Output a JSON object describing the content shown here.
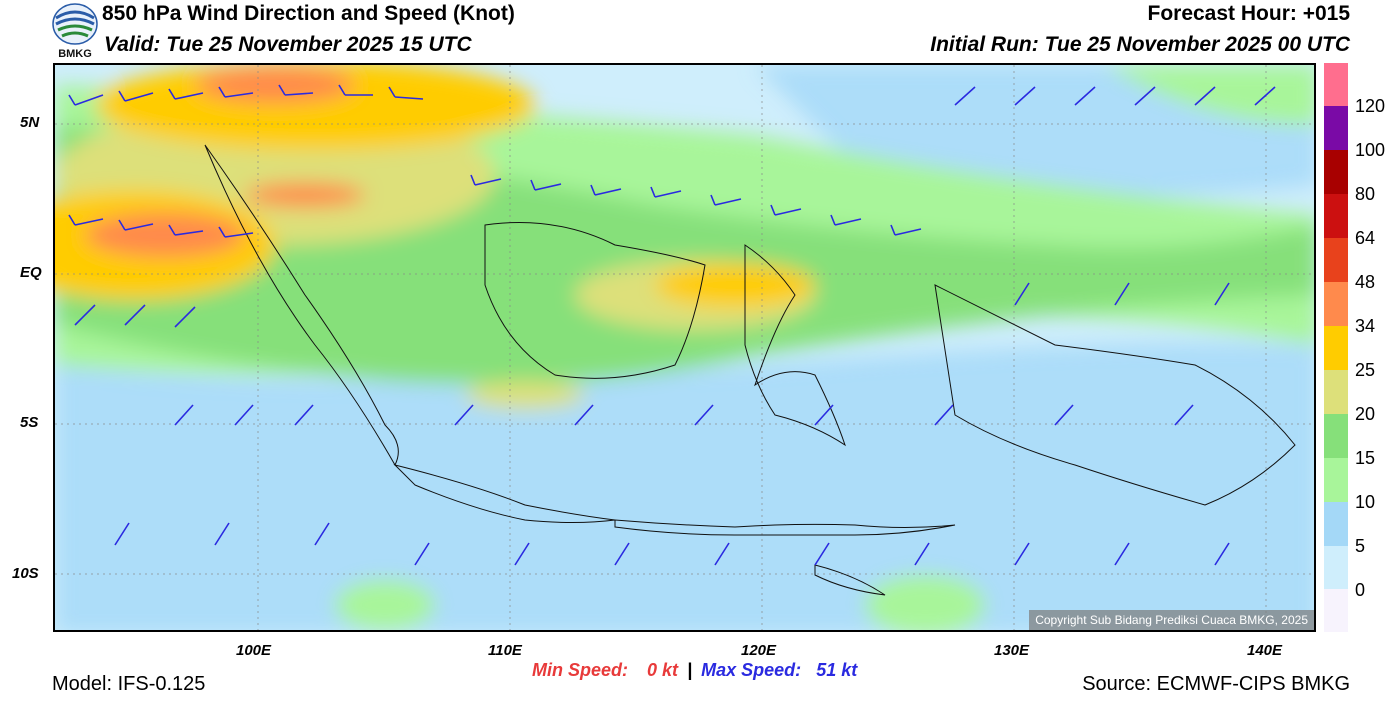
{
  "header": {
    "title": "850 hPa Wind Direction and Speed (Knot)",
    "valid": "Valid: Tue 25 November 2025 15 UTC",
    "forecast_hour": "Forecast Hour: +015",
    "initial_run": "Initial Run: Tue 25 November 2025 00 UTC",
    "logo_text": "BMKG"
  },
  "map": {
    "y_ticks": [
      "5N",
      "EQ",
      "5S",
      "10S"
    ],
    "x_ticks": [
      "100E",
      "110E",
      "120E",
      "130E",
      "140E"
    ],
    "copyright": "Copyright Sub Bidang Prediksi Cuaca BMKG, 2025"
  },
  "colorbar": {
    "labels": [
      "120",
      "100",
      "80",
      "64",
      "48",
      "34",
      "25",
      "20",
      "15",
      "10",
      "5",
      "0"
    ],
    "colors": [
      "#f7f3fd",
      "#cfeefc",
      "#a4d8f7",
      "#a8f59a",
      "#86e07a",
      "#dde07a",
      "#ffcc00",
      "#ff8a4c",
      "#e8421c",
      "#cc1010",
      "#a80000",
      "#7a0aa6",
      "#ff6e8e"
    ]
  },
  "footer": {
    "min_label": "Min Speed:",
    "min_value": "0 kt",
    "separator": "|",
    "max_label": "Max Speed:",
    "max_value": "51 kt",
    "model": "Model: IFS-0.125",
    "source": "Source: ECMWF-CIPS BMKG"
  }
}
